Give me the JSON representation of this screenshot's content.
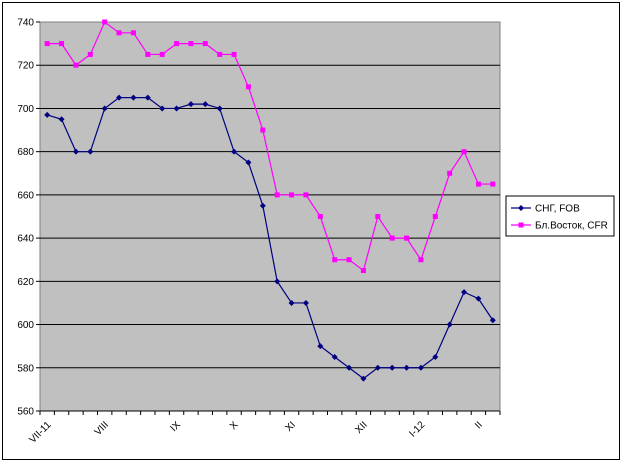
{
  "chart_data": {
    "type": "line",
    "title": "",
    "xlabel": "",
    "ylabel": "",
    "ylim": [
      560,
      740
    ],
    "ytick_step": 20,
    "grid": true,
    "legend_position": "right",
    "plot_background": "#C0C0C0",
    "x_tick_labels": [
      {
        "index": 0,
        "label": "VII-11"
      },
      {
        "index": 4,
        "label": "VIII"
      },
      {
        "index": 9,
        "label": "IX"
      },
      {
        "index": 13,
        "label": "X"
      },
      {
        "index": 17,
        "label": "XI"
      },
      {
        "index": 22,
        "label": "XII"
      },
      {
        "index": 26,
        "label": "I-12"
      },
      {
        "index": 30,
        "label": "II"
      }
    ],
    "series": [
      {
        "name": "СНГ, FOB",
        "color": "#000080",
        "marker": "diamond",
        "values": [
          697,
          695,
          680,
          680,
          700,
          705,
          705,
          705,
          700,
          700,
          702,
          702,
          700,
          680,
          675,
          655,
          620,
          610,
          610,
          590,
          585,
          580,
          575,
          580,
          580,
          580,
          580,
          585,
          600,
          615,
          612,
          602
        ]
      },
      {
        "name": "Бл.Восток, CFR",
        "color": "#FF00FF",
        "marker": "square",
        "values": [
          730,
          730,
          720,
          725,
          740,
          735,
          735,
          725,
          725,
          730,
          730,
          730,
          725,
          725,
          710,
          690,
          660,
          660,
          660,
          650,
          630,
          630,
          625,
          650,
          640,
          640,
          630,
          650,
          670,
          680,
          665,
          665
        ]
      }
    ]
  }
}
